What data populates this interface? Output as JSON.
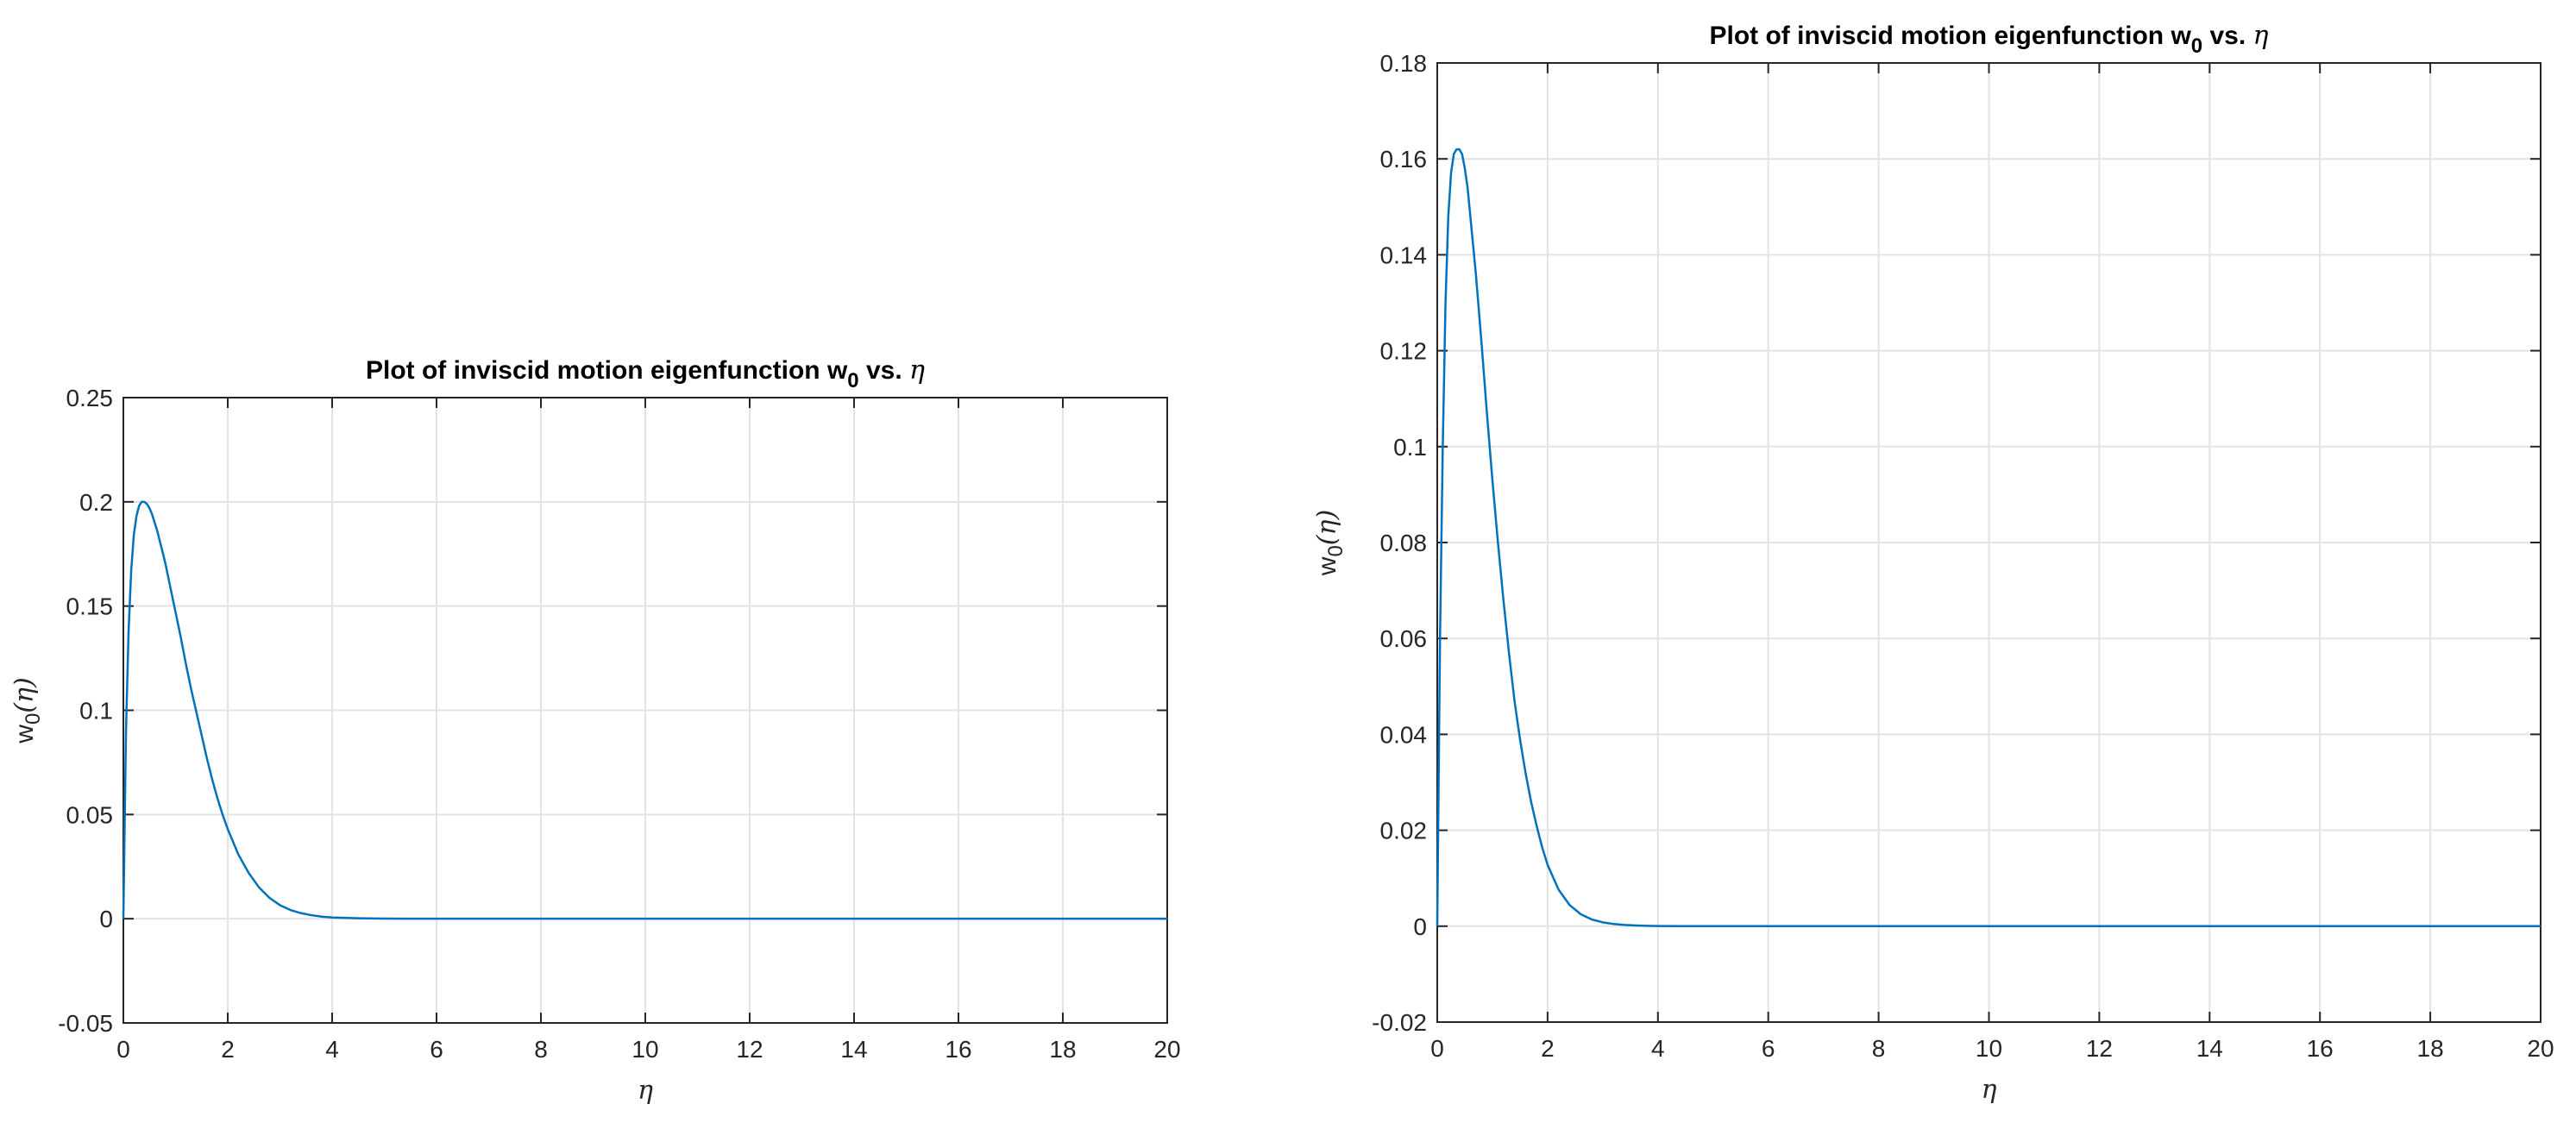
{
  "chart_data": [
    {
      "type": "line",
      "title": "Plot of inviscid motion eigenfunction w",
      "title_sub": "0",
      "title_tail": " vs. ",
      "title_symbol": "η",
      "xlabel": "η",
      "ylabel": "w",
      "ylabel_sub": "0",
      "ylabel_arg": "(η)",
      "xlim": [
        0,
        20
      ],
      "ylim": [
        -0.05,
        0.25
      ],
      "xticks": [
        "0",
        "2",
        "4",
        "6",
        "8",
        "10",
        "12",
        "14",
        "16",
        "18",
        "20"
      ],
      "yticks": [
        "-0.05",
        "0",
        "0.05",
        "0.1",
        "0.15",
        "0.2",
        "0.25"
      ],
      "grid": true,
      "series": [
        {
          "color": "#0072bd",
          "x": [
            0,
            0.05,
            0.1,
            0.15,
            0.2,
            0.25,
            0.3,
            0.35,
            0.4,
            0.45,
            0.5,
            0.55,
            0.6,
            0.65,
            0.7,
            0.75,
            0.8,
            0.9,
            1.0,
            1.1,
            1.2,
            1.3,
            1.4,
            1.5,
            1.6,
            1.7,
            1.8,
            1.9,
            2.0,
            2.2,
            2.4,
            2.6,
            2.8,
            3.0,
            3.2,
            3.4,
            3.6,
            3.8,
            4.0,
            4.5,
            5.0,
            5.5,
            6.0,
            7.0,
            8.0,
            10.0,
            12.0,
            14.0,
            16.0,
            18.0,
            20.0
          ],
          "y": [
            0,
            0.09,
            0.138,
            0.167,
            0.184,
            0.193,
            0.198,
            0.2,
            0.2,
            0.199,
            0.197,
            0.194,
            0.19,
            0.186,
            0.181,
            0.176,
            0.171,
            0.159,
            0.147,
            0.135,
            0.122,
            0.11,
            0.099,
            0.088,
            0.077,
            0.067,
            0.058,
            0.05,
            0.043,
            0.031,
            0.022,
            0.015,
            0.01,
            0.0065,
            0.0042,
            0.0027,
            0.0017,
            0.001,
            0.0006,
            0.0002,
            5e-05,
            1e-05,
            0,
            0,
            0,
            0,
            0,
            0,
            0,
            0,
            0
          ]
        }
      ]
    },
    {
      "type": "line",
      "title": "Plot of inviscid motion eigenfunction w",
      "title_sub": "0",
      "title_tail": " vs. ",
      "title_symbol": "η",
      "xlabel": "η",
      "ylabel": "w",
      "ylabel_sub": "0",
      "ylabel_arg": "(η)",
      "xlim": [
        0,
        20
      ],
      "ylim": [
        -0.02,
        0.18
      ],
      "xticks": [
        "0",
        "2",
        "4",
        "6",
        "8",
        "10",
        "12",
        "14",
        "16",
        "18",
        "20"
      ],
      "yticks": [
        "-0.02",
        "0",
        "0.02",
        "0.04",
        "0.06",
        "0.08",
        "0.1",
        "0.12",
        "0.14",
        "0.16",
        "0.18"
      ],
      "grid": true,
      "series": [
        {
          "color": "#0072bd",
          "x": [
            0,
            0.05,
            0.1,
            0.15,
            0.2,
            0.25,
            0.3,
            0.35,
            0.4,
            0.45,
            0.5,
            0.55,
            0.6,
            0.7,
            0.8,
            0.9,
            1.0,
            1.1,
            1.2,
            1.3,
            1.4,
            1.5,
            1.6,
            1.7,
            1.8,
            1.9,
            2.0,
            2.2,
            2.4,
            2.6,
            2.8,
            3.0,
            3.2,
            3.4,
            3.6,
            3.8,
            4.0,
            4.5,
            5.0,
            6.0,
            8.0,
            10.0,
            12.0,
            14.0,
            16.0,
            18.0,
            20.0
          ],
          "y": [
            0,
            0.06,
            0.1,
            0.13,
            0.148,
            0.157,
            0.161,
            0.162,
            0.162,
            0.161,
            0.158,
            0.154,
            0.148,
            0.136,
            0.122,
            0.107,
            0.093,
            0.08,
            0.068,
            0.057,
            0.047,
            0.039,
            0.032,
            0.026,
            0.021,
            0.0165,
            0.0128,
            0.0076,
            0.0044,
            0.0025,
            0.0014,
            0.0008,
            0.00045,
            0.00025,
            0.00014,
            8e-05,
            4e-05,
            1e-05,
            0,
            0,
            0,
            0,
            0,
            0,
            0,
            0,
            0
          ]
        }
      ]
    }
  ]
}
